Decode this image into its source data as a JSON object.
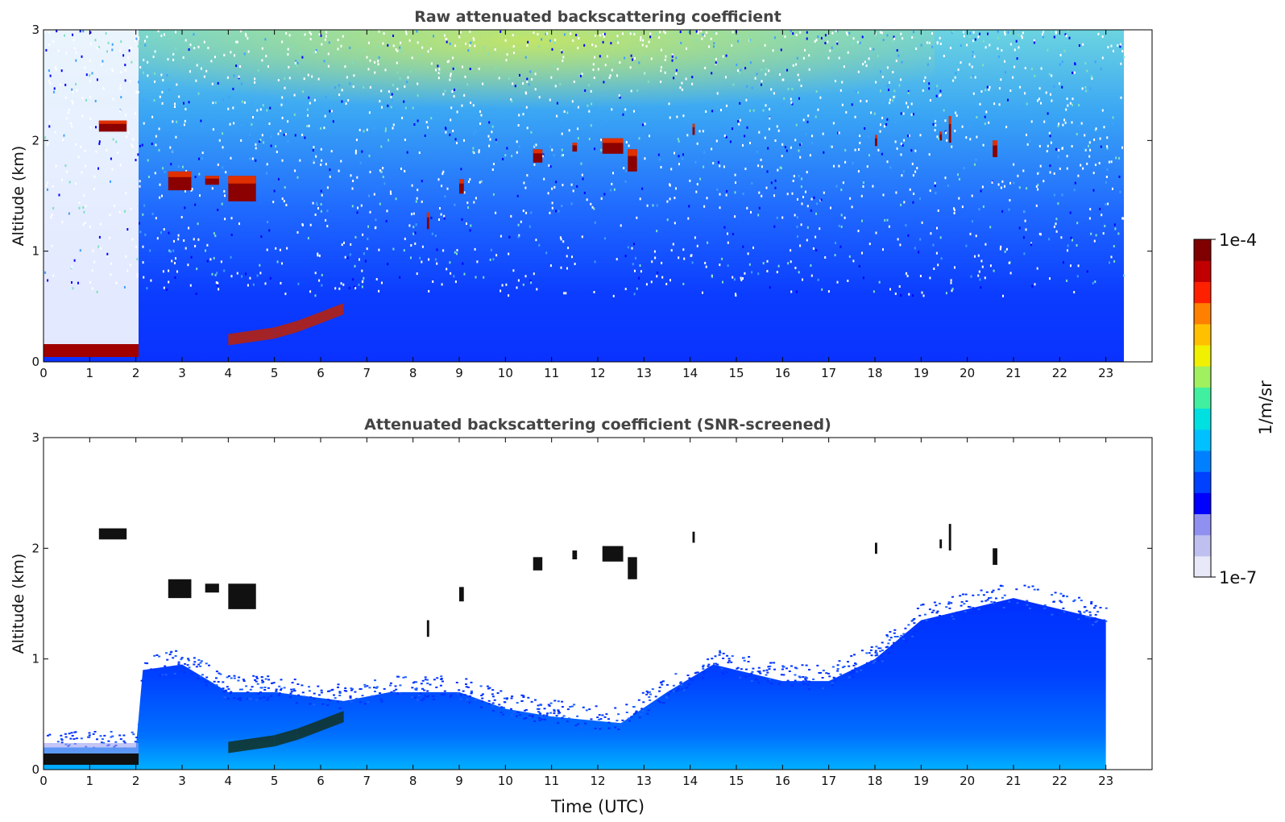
{
  "chart_data": [
    {
      "type": "heatmap",
      "title": "Raw attenuated backscattering coefficient",
      "xlabel": "",
      "ylabel": "Altitude (km)",
      "xlim": [
        0,
        24
      ],
      "ylim": [
        0,
        3
      ],
      "x_ticks": [
        "0",
        "1",
        "2",
        "3",
        "4",
        "5",
        "6",
        "7",
        "8",
        "9",
        "10",
        "11",
        "12",
        "13",
        "14",
        "15",
        "16",
        "17",
        "18",
        "19",
        "20",
        "21",
        "22",
        "23"
      ],
      "y_ticks": [
        "0",
        "1",
        "2",
        "3"
      ],
      "data_extent_hours": [
        0,
        23
      ],
      "color_scale": "log",
      "features": {
        "surface_layer": {
          "x": [
            0,
            2.1
          ],
          "y": [
            0,
            0.12
          ],
          "level": "high"
        },
        "aerosol_layer_rising": [
          [
            4.0,
            0.2
          ],
          [
            4.5,
            0.23
          ],
          [
            5.0,
            0.26
          ],
          [
            5.5,
            0.32
          ],
          [
            6.0,
            0.4
          ],
          [
            6.5,
            0.48
          ]
        ],
        "clouds": [
          {
            "x": [
              1.2,
              1.8
            ],
            "y": [
              2.08,
              2.18
            ]
          },
          {
            "x": [
              2.7,
              3.2
            ],
            "y": [
              1.55,
              1.72
            ]
          },
          {
            "x": [
              3.5,
              3.8
            ],
            "y": [
              1.6,
              1.68
            ]
          },
          {
            "x": [
              4.0,
              4.6
            ],
            "y": [
              1.45,
              1.68
            ]
          },
          {
            "x": [
              8.3,
              8.35
            ],
            "y": [
              1.2,
              1.35
            ]
          },
          {
            "x": [
              9.0,
              9.1
            ],
            "y": [
              1.52,
              1.65
            ]
          },
          {
            "x": [
              10.6,
              10.8
            ],
            "y": [
              1.8,
              1.92
            ]
          },
          {
            "x": [
              11.45,
              11.55
            ],
            "y": [
              1.9,
              1.98
            ]
          },
          {
            "x": [
              12.1,
              12.55
            ],
            "y": [
              1.88,
              2.02
            ]
          },
          {
            "x": [
              12.65,
              12.85
            ],
            "y": [
              1.72,
              1.92
            ]
          },
          {
            "x": [
              14.05,
              14.1
            ],
            "y": [
              2.05,
              2.15
            ]
          },
          {
            "x": [
              18.0,
              18.05
            ],
            "y": [
              1.95,
              2.05
            ]
          },
          {
            "x": [
              19.4,
              19.45
            ],
            "y": [
              2.0,
              2.08
            ]
          },
          {
            "x": [
              19.6,
              19.65
            ],
            "y": [
              1.98,
              2.22
            ]
          },
          {
            "x": [
              20.55,
              20.65
            ],
            "y": [
              1.85,
              2.0
            ]
          }
        ]
      }
    },
    {
      "type": "heatmap",
      "title": "Attenuated backscattering coefficient (SNR-screened)",
      "xlabel": "Time (UTC)",
      "ylabel": "Altitude (km)",
      "xlim": [
        0,
        24
      ],
      "ylim": [
        0,
        3
      ],
      "x_ticks": [
        "0",
        "1",
        "2",
        "3",
        "4",
        "5",
        "6",
        "7",
        "8",
        "9",
        "10",
        "11",
        "12",
        "13",
        "14",
        "15",
        "16",
        "17",
        "18",
        "19",
        "20",
        "21",
        "22",
        "23"
      ],
      "y_ticks": [
        "0",
        "1",
        "2",
        "3"
      ],
      "data_extent_hours": [
        0,
        23
      ],
      "boundary_layer_top_km": [
        [
          0,
          0.2
        ],
        [
          2.0,
          0.2
        ],
        [
          2.15,
          0.9
        ],
        [
          3.0,
          0.95
        ],
        [
          4.0,
          0.7
        ],
        [
          5.0,
          0.7
        ],
        [
          6.5,
          0.62
        ],
        [
          7.5,
          0.7
        ],
        [
          9.0,
          0.7
        ],
        [
          10.0,
          0.55
        ],
        [
          11.0,
          0.48
        ],
        [
          12.5,
          0.42
        ],
        [
          13.5,
          0.7
        ],
        [
          14.5,
          0.95
        ],
        [
          16.0,
          0.8
        ],
        [
          17.0,
          0.8
        ],
        [
          18.0,
          1.0
        ],
        [
          19.0,
          1.35
        ],
        [
          20.0,
          1.45
        ],
        [
          21.0,
          1.55
        ],
        [
          22.0,
          1.45
        ],
        [
          23.0,
          1.35
        ]
      ]
    },
    {
      "type": "colorbar",
      "label": "1/m/sr",
      "scale": "log",
      "min_label": "1e-7",
      "max_label": "1e-4",
      "min": 1e-07,
      "max": 0.0001,
      "colormap": [
        "#e8e8f8",
        "#c0c0f0",
        "#9090f0",
        "#0000ff",
        "#0040ff",
        "#0080ff",
        "#00c0ff",
        "#00e0e0",
        "#40f0a0",
        "#a0f060",
        "#f0f000",
        "#ffc000",
        "#ff8000",
        "#ff2000",
        "#c00000",
        "#800000"
      ]
    }
  ]
}
